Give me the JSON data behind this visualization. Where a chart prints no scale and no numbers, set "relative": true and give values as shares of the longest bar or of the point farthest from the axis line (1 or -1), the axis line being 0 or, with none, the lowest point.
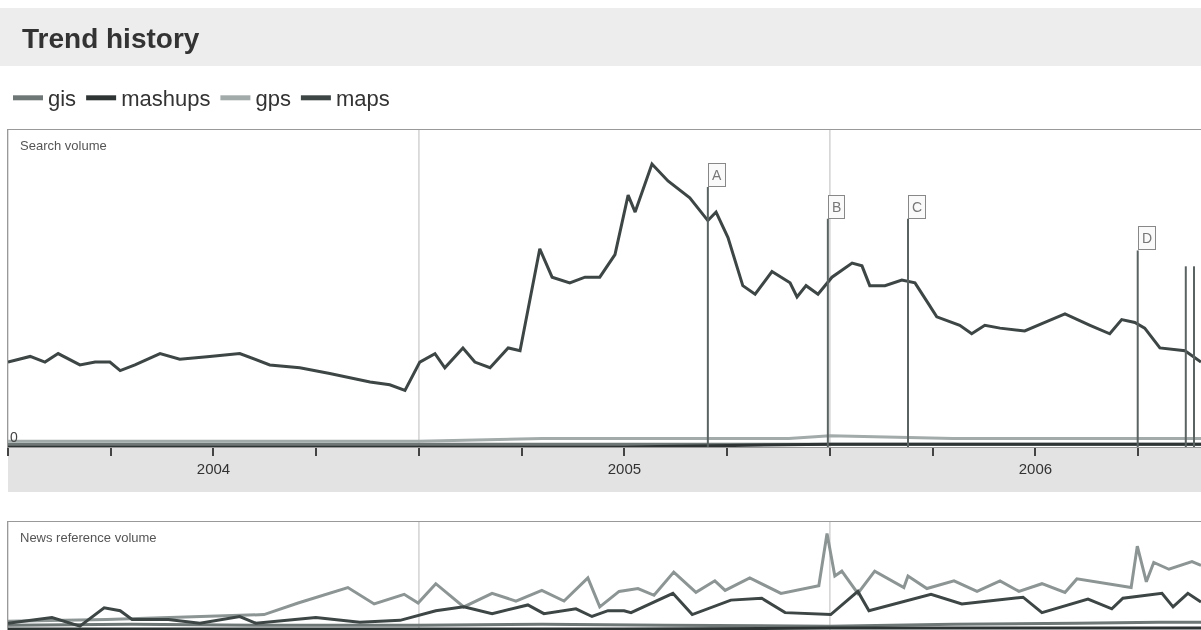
{
  "chart_data": [
    {
      "type": "line",
      "title": "Trend history",
      "ylabel": "Search volume",
      "relative": true,
      "legend": "top left",
      "grid": "x",
      "tick_labels": "x",
      "line_style": "solid",
      "marker": "none",
      "xlim": [
        2004.0,
        2006.903
      ],
      "xticks": [
        {
          "value": 2004.0,
          "label": null
        },
        {
          "value": 2004.25,
          "label": null
        },
        {
          "value": 2004.5,
          "label": "2004"
        },
        {
          "value": 2004.75,
          "label": null
        },
        {
          "value": 2005.0,
          "label": null
        },
        {
          "value": 2005.25,
          "label": null
        },
        {
          "value": 2005.5,
          "label": "2005"
        },
        {
          "value": 2005.75,
          "label": null
        },
        {
          "value": 2006.0,
          "label": null
        },
        {
          "value": 2006.25,
          "label": null
        },
        {
          "value": 2006.5,
          "label": "2006"
        },
        {
          "value": 2006.75,
          "label": null
        }
      ],
      "annotations": [
        {
          "text": "0",
          "x": 2004.0,
          "y": 0
        }
      ],
      "ref_lines": [
        {
          "axis": "x",
          "value": 2005.703,
          "label": "A",
          "color": "#5a6262"
        },
        {
          "axis": "x",
          "value": 2005.995,
          "label": "B",
          "color": "#5a6262"
        },
        {
          "axis": "x",
          "value": 2006.19,
          "label": "C",
          "color": "#5a6262"
        },
        {
          "axis": "x",
          "value": 2006.749,
          "label": "D",
          "color": "#5a6262"
        },
        {
          "axis": "x",
          "value": 2006.866,
          "label": null,
          "color": "#5a6262"
        },
        {
          "axis": "x",
          "value": 2006.886,
          "label": null,
          "color": "#5a6262"
        }
      ],
      "series": [
        {
          "name": "gis",
          "color": "#6e7676",
          "x": [
            2004.0,
            2004.5,
            2005.0,
            2005.5,
            2006.0,
            2006.5,
            2006.903
          ],
          "values": [
            0.01,
            0.01,
            0.01,
            0.01,
            0.01,
            0.01,
            0.01
          ]
        },
        {
          "name": "mashups",
          "color": "#2e3434",
          "x": [
            2004.0,
            2004.5,
            2005.0,
            2005.5,
            2006.0,
            2006.5,
            2006.903
          ],
          "values": [
            0.0,
            0.0,
            0.0,
            0.0,
            0.01,
            0.01,
            0.01
          ]
        },
        {
          "name": "gps",
          "color": "#a3aaaa",
          "x": [
            2004.0,
            2004.5,
            2005.0,
            2005.3,
            2005.5,
            2005.7,
            2005.9,
            2006.0,
            2006.3,
            2006.6,
            2006.903
          ],
          "values": [
            0.02,
            0.02,
            0.02,
            0.03,
            0.03,
            0.03,
            0.03,
            0.04,
            0.03,
            0.03,
            0.03
          ]
        },
        {
          "name": "maps",
          "color": "#3d4545",
          "x": [
            2004.0,
            2004.054,
            2004.09,
            2004.122,
            2004.175,
            2004.212,
            2004.248,
            2004.273,
            2004.309,
            2004.37,
            2004.418,
            2004.491,
            2004.564,
            2004.637,
            2004.71,
            2004.783,
            2004.881,
            2004.929,
            2004.966,
            2005.002,
            2005.039,
            2005.063,
            2005.107,
            2005.136,
            2005.173,
            2005.217,
            2005.246,
            2005.294,
            2005.324,
            2005.367,
            2005.404,
            2005.44,
            2005.477,
            2005.509,
            2005.526,
            2005.567,
            2005.606,
            2005.659,
            2005.703,
            2005.723,
            2005.752,
            2005.788,
            2005.818,
            2005.859,
            2005.903,
            2005.92,
            2005.942,
            2005.971,
            2006.005,
            2006.054,
            2006.078,
            2006.097,
            2006.134,
            2006.175,
            2006.207,
            2006.238,
            2006.26,
            2006.316,
            2006.345,
            2006.377,
            2006.414,
            2006.474,
            2006.523,
            2006.572,
            2006.633,
            2006.681,
            2006.71,
            2006.742,
            2006.766,
            2006.803,
            2006.864,
            2006.903
          ],
          "values": [
            0.3,
            0.32,
            0.3,
            0.33,
            0.29,
            0.3,
            0.3,
            0.27,
            0.29,
            0.33,
            0.31,
            0.32,
            0.33,
            0.29,
            0.28,
            0.26,
            0.23,
            0.22,
            0.2,
            0.3,
            0.33,
            0.28,
            0.35,
            0.3,
            0.28,
            0.35,
            0.34,
            0.7,
            0.6,
            0.58,
            0.6,
            0.6,
            0.68,
            0.89,
            0.83,
            1.0,
            0.94,
            0.88,
            0.8,
            0.83,
            0.74,
            0.57,
            0.54,
            0.62,
            0.58,
            0.53,
            0.57,
            0.54,
            0.6,
            0.65,
            0.64,
            0.57,
            0.57,
            0.59,
            0.58,
            0.51,
            0.46,
            0.43,
            0.4,
            0.43,
            0.42,
            0.41,
            0.44,
            0.47,
            0.43,
            0.4,
            0.45,
            0.44,
            0.42,
            0.35,
            0.34,
            0.3
          ]
        }
      ]
    },
    {
      "type": "line",
      "ylabel": "News reference volume",
      "relative": true,
      "grid": "x",
      "tick_labels": false,
      "line_style": "solid",
      "marker": "none",
      "xlim": [
        2004.0,
        2006.903
      ],
      "xticks": [
        {
          "value": 2004.0,
          "label": null
        },
        {
          "value": 2005.0,
          "label": null
        },
        {
          "value": 2006.0,
          "label": null
        }
      ],
      "series": [
        {
          "color": "#6e7676",
          "x": [
            2004.0,
            2004.3,
            2004.6,
            2005.0,
            2005.3,
            2005.6,
            2006.0,
            2006.3,
            2006.6,
            2006.8,
            2006.903
          ],
          "values": [
            0.05,
            0.06,
            0.05,
            0.05,
            0.06,
            0.05,
            0.04,
            0.06,
            0.07,
            0.08,
            0.08
          ]
        },
        {
          "color": "#2e3434",
          "x": [
            2004.0,
            2004.5,
            2005.0,
            2005.5,
            2006.0,
            2006.5,
            2006.903
          ],
          "values": [
            0.01,
            0.01,
            0.01,
            0.01,
            0.02,
            0.02,
            0.02
          ]
        },
        {
          "color": "#8c9494",
          "x": [
            2004.0,
            2004.24,
            2004.623,
            2004.706,
            2004.827,
            2004.891,
            2004.964,
            2004.998,
            2005.041,
            2005.109,
            2005.178,
            2005.236,
            2005.299,
            2005.353,
            2005.411,
            2005.44,
            2005.487,
            2005.533,
            2005.572,
            2005.62,
            2005.674,
            2005.72,
            2005.745,
            2005.805,
            2005.881,
            2005.973,
            2005.993,
            2006.012,
            2006.029,
            2006.068,
            2006.109,
            2006.18,
            2006.19,
            2006.236,
            2006.302,
            2006.358,
            2006.414,
            2006.46,
            2006.516,
            2006.572,
            2006.601,
            2006.733,
            2006.748,
            2006.77,
            2006.788,
            2006.825,
            2006.881,
            2006.903
          ],
          "values": [
            0.09,
            0.11,
            0.16,
            0.28,
            0.44,
            0.27,
            0.37,
            0.28,
            0.48,
            0.24,
            0.38,
            0.3,
            0.41,
            0.3,
            0.54,
            0.24,
            0.4,
            0.43,
            0.36,
            0.6,
            0.39,
            0.51,
            0.41,
            0.54,
            0.38,
            0.46,
            1.0,
            0.56,
            0.61,
            0.38,
            0.61,
            0.44,
            0.56,
            0.43,
            0.51,
            0.4,
            0.51,
            0.4,
            0.48,
            0.39,
            0.53,
            0.44,
            0.87,
            0.5,
            0.7,
            0.63,
            0.71,
            0.67
          ]
        },
        {
          "color": "#3d4545",
          "x": [
            2004.0,
            2004.107,
            2004.175,
            2004.234,
            2004.273,
            2004.302,
            2004.39,
            2004.467,
            2004.564,
            2004.603,
            2004.749,
            2004.856,
            2004.954,
            2005.041,
            2005.109,
            2005.178,
            2005.265,
            2005.304,
            2005.382,
            2005.421,
            2005.46,
            2005.499,
            2005.516,
            2005.618,
            2005.665,
            2005.759,
            2005.834,
            2005.891,
            2006.002,
            2006.068,
            2006.095,
            2006.246,
            2006.321,
            2006.47,
            2006.516,
            2006.628,
            2006.686,
            2006.713,
            2006.808,
            2006.835,
            2006.871,
            2006.903
          ],
          "values": [
            0.07,
            0.13,
            0.04,
            0.23,
            0.2,
            0.11,
            0.11,
            0.07,
            0.14,
            0.07,
            0.13,
            0.08,
            0.1,
            0.2,
            0.24,
            0.17,
            0.26,
            0.17,
            0.22,
            0.14,
            0.2,
            0.2,
            0.18,
            0.38,
            0.16,
            0.31,
            0.33,
            0.18,
            0.16,
            0.4,
            0.2,
            0.37,
            0.27,
            0.34,
            0.18,
            0.32,
            0.22,
            0.33,
            0.38,
            0.24,
            0.38,
            0.29
          ]
        }
      ]
    }
  ]
}
